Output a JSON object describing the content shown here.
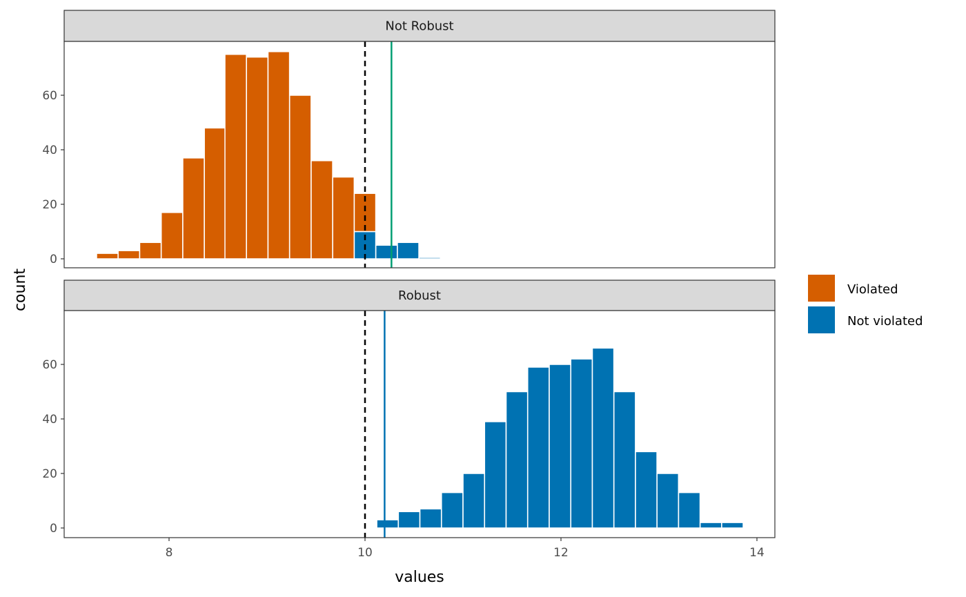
{
  "chart_data": {
    "type": "bar",
    "subtype": "faceted-stacked-histogram",
    "xlabel": "values",
    "ylabel": "count",
    "xlim": [
      6.95,
      14.2
    ],
    "ylim": [
      -3.5,
      79.5
    ],
    "x_ticks": [
      8,
      10,
      12,
      14
    ],
    "y_ticks": [
      0,
      20,
      40,
      60
    ],
    "grid": false,
    "bin_width": 0.219,
    "legend": {
      "position": "right",
      "entries": [
        {
          "label": "Violated",
          "color": "#D55E00"
        },
        {
          "label": "Not violated",
          "color": "#0072B2"
        }
      ]
    },
    "reference_lines": [
      {
        "panel": "all",
        "x": 10,
        "style": "dashed",
        "color": "#000000"
      },
      {
        "panel": "Not Robust",
        "x": 10.27,
        "style": "solid",
        "color": "#009E73"
      },
      {
        "panel": "Robust",
        "x": 10.2,
        "style": "solid",
        "color": "#0072B2"
      }
    ],
    "panels": [
      {
        "title": "Not Robust",
        "bin_centers": [
          7.37,
          7.59,
          7.81,
          8.03,
          8.25,
          8.47,
          8.68,
          8.9,
          9.12,
          9.34,
          9.56,
          9.78,
          10.0,
          10.22,
          10.44,
          10.66
        ],
        "series": [
          {
            "name": "Violated",
            "values": [
              2,
              3,
              6,
              17,
              37,
              48,
              75,
              74,
              76,
              60,
              36,
              30,
              14,
              0,
              0,
              0
            ]
          },
          {
            "name": "Not violated",
            "values": [
              0,
              0,
              0,
              0,
              0,
              0,
              0,
              0,
              0,
              0,
              0,
              0,
              10,
              5,
              6,
              0.5
            ]
          }
        ]
      },
      {
        "title": "Robust",
        "bin_centers": [
          10.23,
          10.45,
          10.67,
          10.89,
          11.11,
          11.33,
          11.55,
          11.77,
          11.99,
          12.21,
          12.43,
          12.65,
          12.87,
          13.09,
          13.31,
          13.53,
          13.75
        ],
        "series": [
          {
            "name": "Violated",
            "values": [
              0,
              0,
              0,
              0,
              0,
              0,
              0,
              0,
              0,
              0,
              0,
              0,
              0,
              0,
              0,
              0,
              0
            ]
          },
          {
            "name": "Not violated",
            "values": [
              3,
              6,
              7,
              13,
              20,
              39,
              50,
              59,
              60,
              62,
              66,
              50,
              28,
              20,
              13,
              2,
              2
            ]
          }
        ]
      }
    ]
  },
  "strips": [
    "Not Robust",
    "Robust"
  ],
  "axes": {
    "x_title": "values",
    "y_title": "count"
  }
}
